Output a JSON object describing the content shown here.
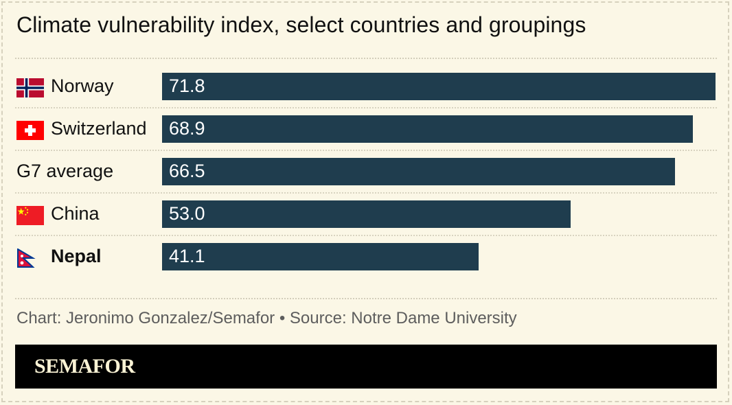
{
  "chart_data": {
    "type": "bar",
    "orientation": "horizontal",
    "title": "Climate vulnerability index, select countries and groupings",
    "categories": [
      "Norway",
      "Switzerland",
      "G7 average",
      "China",
      "Nepal"
    ],
    "values": [
      71.8,
      68.9,
      66.5,
      53.0,
      41.1
    ],
    "value_labels": [
      "71.8",
      "68.9",
      "66.5",
      "53.0",
      "41.1"
    ],
    "highlight": "Nepal",
    "xlim": [
      0,
      71.8
    ],
    "grid": false,
    "bar_color": "#1f3d4e",
    "flags": [
      "norway-flag-icon",
      "switzerland-flag-icon",
      null,
      "china-flag-icon",
      "nepal-flag-icon"
    ]
  },
  "footer": {
    "source": "Chart: Jeronimo Gonzalez/Semafor • Source: Notre Dame University",
    "brand": "SEMAFOR"
  },
  "colors": {
    "background": "#fbf7e6",
    "bar": "#1f3d4e",
    "footer_bg": "#000000",
    "brand_text": "#fbf3d5"
  }
}
